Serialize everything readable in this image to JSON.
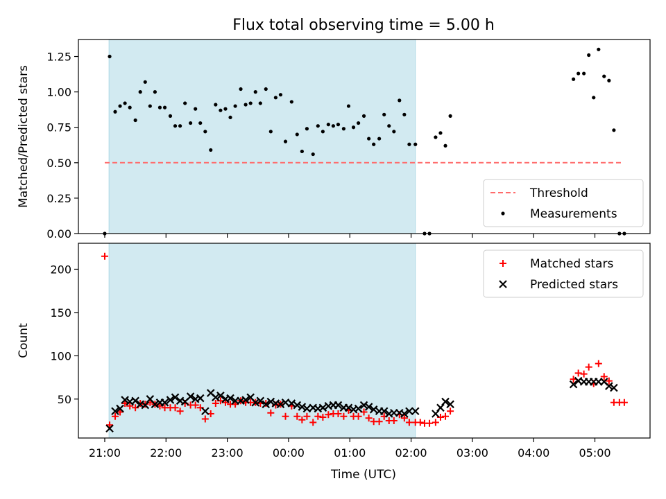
{
  "chart_data": {
    "type": "scatter",
    "title": "Flux total observing time = 5.00 h",
    "xlabel": "Time (UTC)",
    "x_ticks": [
      "21:00",
      "22:00",
      "23:00",
      "00:00",
      "01:00",
      "02:00",
      "03:00",
      "04:00",
      "05:00"
    ],
    "x_tick_hours": [
      0,
      1,
      2,
      3,
      4,
      5,
      6,
      7,
      8
    ],
    "x_range_hours": [
      -0.43,
      8.9
    ],
    "x_origin": "21:00",
    "shaded_interval_hours": [
      0.07,
      5.07
    ],
    "shade_color": "#add8e6",
    "panels": [
      {
        "ylabel": "Matched/Predicted stars",
        "ylim": [
          0,
          1.37
        ],
        "y_ticks": [
          "0.00",
          "0.25",
          "0.50",
          "0.75",
          "1.00",
          "1.25"
        ],
        "y_tick_values": [
          0,
          0.25,
          0.5,
          0.75,
          1.0,
          1.25
        ],
        "threshold": {
          "name": "Threshold",
          "value": 0.5,
          "x_span_hours": [
            0,
            8.45
          ],
          "color": "#ff6b6b"
        },
        "legend": [
          "Threshold",
          "Measurements"
        ],
        "legend_position": "lower right",
        "series": [
          {
            "name": "Measurements",
            "marker": "dot",
            "color": "#000000",
            "points": [
              [
                0.0,
                0.0
              ],
              [
                0.08,
                1.25
              ],
              [
                0.17,
                0.86
              ],
              [
                0.25,
                0.9
              ],
              [
                0.33,
                0.92
              ],
              [
                0.41,
                0.89
              ],
              [
                0.5,
                0.8
              ],
              [
                0.58,
                1.0
              ],
              [
                0.66,
                1.07
              ],
              [
                0.74,
                0.9
              ],
              [
                0.82,
                1.0
              ],
              [
                0.9,
                0.89
              ],
              [
                0.98,
                0.89
              ],
              [
                1.07,
                0.83
              ],
              [
                1.15,
                0.76
              ],
              [
                1.23,
                0.76
              ],
              [
                1.31,
                0.92
              ],
              [
                1.4,
                0.78
              ],
              [
                1.48,
                0.88
              ],
              [
                1.56,
                0.78
              ],
              [
                1.64,
                0.72
              ],
              [
                1.73,
                0.59
              ],
              [
                1.81,
                0.91
              ],
              [
                1.89,
                0.87
              ],
              [
                1.97,
                0.88
              ],
              [
                2.05,
                0.82
              ],
              [
                2.13,
                0.9
              ],
              [
                2.22,
                1.02
              ],
              [
                2.3,
                0.91
              ],
              [
                2.38,
                0.92
              ],
              [
                2.46,
                1.0
              ],
              [
                2.54,
                0.92
              ],
              [
                2.63,
                1.02
              ],
              [
                2.71,
                0.72
              ],
              [
                2.79,
                0.96
              ],
              [
                2.87,
                0.98
              ],
              [
                2.95,
                0.65
              ],
              [
                3.05,
                0.93
              ],
              [
                3.14,
                0.7
              ],
              [
                3.22,
                0.58
              ],
              [
                3.3,
                0.74
              ],
              [
                3.4,
                0.56
              ],
              [
                3.48,
                0.76
              ],
              [
                3.56,
                0.72
              ],
              [
                3.65,
                0.77
              ],
              [
                3.73,
                0.76
              ],
              [
                3.81,
                0.77
              ],
              [
                3.9,
                0.74
              ],
              [
                3.98,
                0.9
              ],
              [
                4.06,
                0.75
              ],
              [
                4.14,
                0.78
              ],
              [
                4.23,
                0.83
              ],
              [
                4.31,
                0.67
              ],
              [
                4.39,
                0.63
              ],
              [
                4.48,
                0.67
              ],
              [
                4.56,
                0.84
              ],
              [
                4.64,
                0.76
              ],
              [
                4.72,
                0.72
              ],
              [
                4.81,
                0.94
              ],
              [
                4.89,
                0.84
              ],
              [
                4.97,
                0.63
              ],
              [
                5.07,
                0.63
              ],
              [
                5.22,
                0.0
              ],
              [
                5.3,
                0.0
              ],
              [
                5.4,
                0.68
              ],
              [
                5.48,
                0.71
              ],
              [
                5.56,
                0.62
              ],
              [
                5.64,
                0.83
              ],
              [
                7.65,
                1.09
              ],
              [
                7.73,
                1.13
              ],
              [
                7.82,
                1.13
              ],
              [
                7.9,
                1.26
              ],
              [
                7.98,
                0.96
              ],
              [
                8.06,
                1.3
              ],
              [
                8.15,
                1.11
              ],
              [
                8.23,
                1.08
              ],
              [
                8.31,
                0.73
              ],
              [
                8.4,
                0.0
              ],
              [
                8.48,
                0.0
              ]
            ]
          }
        ]
      },
      {
        "ylabel": "Count",
        "ylim": [
          5,
          230
        ],
        "y_ticks": [
          "50",
          "100",
          "150",
          "200"
        ],
        "y_tick_values": [
          50,
          100,
          150,
          200
        ],
        "legend": [
          "Matched stars",
          "Predicted stars"
        ],
        "legend_position": "upper right",
        "series": [
          {
            "name": "Matched stars",
            "marker": "plus",
            "color": "#ff0000",
            "points": [
              [
                0.0,
                215
              ],
              [
                0.08,
                20
              ],
              [
                0.17,
                30
              ],
              [
                0.25,
                35
              ],
              [
                0.33,
                45
              ],
              [
                0.41,
                42
              ],
              [
                0.5,
                40
              ],
              [
                0.58,
                45
              ],
              [
                0.66,
                44
              ],
              [
                0.74,
                46
              ],
              [
                0.82,
                44
              ],
              [
                0.9,
                42
              ],
              [
                0.98,
                40
              ],
              [
                1.07,
                40
              ],
              [
                1.15,
                40
              ],
              [
                1.23,
                36
              ],
              [
                1.31,
                45
              ],
              [
                1.4,
                43
              ],
              [
                1.48,
                43
              ],
              [
                1.56,
                40
              ],
              [
                1.64,
                27
              ],
              [
                1.73,
                33
              ],
              [
                1.81,
                45
              ],
              [
                1.89,
                48
              ],
              [
                1.97,
                46
              ],
              [
                2.05,
                44
              ],
              [
                2.13,
                44
              ],
              [
                2.22,
                48
              ],
              [
                2.3,
                46
              ],
              [
                2.38,
                46
              ],
              [
                2.46,
                46
              ],
              [
                2.54,
                45
              ],
              [
                2.63,
                45
              ],
              [
                2.71,
                34
              ],
              [
                2.79,
                43
              ],
              [
                2.87,
                44
              ],
              [
                2.95,
                30
              ],
              [
                3.05,
                42
              ],
              [
                3.14,
                30
              ],
              [
                3.22,
                26
              ],
              [
                3.3,
                30
              ],
              [
                3.4,
                23
              ],
              [
                3.48,
                30
              ],
              [
                3.56,
                29
              ],
              [
                3.65,
                32
              ],
              [
                3.73,
                33
              ],
              [
                3.81,
                33
              ],
              [
                3.9,
                30
              ],
              [
                3.98,
                37
              ],
              [
                4.06,
                30
              ],
              [
                4.14,
                30
              ],
              [
                4.23,
                35
              ],
              [
                4.31,
                28
              ],
              [
                4.39,
                24
              ],
              [
                4.48,
                24
              ],
              [
                4.56,
                30
              ],
              [
                4.64,
                25
              ],
              [
                4.72,
                25
              ],
              [
                4.81,
                32
              ],
              [
                4.89,
                28
              ],
              [
                4.97,
                23
              ],
              [
                5.07,
                23
              ],
              [
                5.15,
                23
              ],
              [
                5.22,
                22
              ],
              [
                5.3,
                22
              ],
              [
                5.4,
                23
              ],
              [
                5.48,
                29
              ],
              [
                5.56,
                30
              ],
              [
                5.64,
                36
              ],
              [
                7.65,
                73
              ],
              [
                7.73,
                80
              ],
              [
                7.82,
                79
              ],
              [
                7.9,
                87
              ],
              [
                7.98,
                68
              ],
              [
                8.06,
                91
              ],
              [
                8.15,
                76
              ],
              [
                8.23,
                71
              ],
              [
                8.31,
                46
              ],
              [
                8.4,
                46
              ],
              [
                8.48,
                46
              ]
            ]
          },
          {
            "name": "Predicted stars",
            "marker": "x",
            "color": "#000000",
            "points": [
              [
                0.08,
                16
              ],
              [
                0.17,
                36
              ],
              [
                0.25,
                39
              ],
              [
                0.33,
                49
              ],
              [
                0.41,
                47
              ],
              [
                0.5,
                48
              ],
              [
                0.58,
                44
              ],
              [
                0.66,
                43
              ],
              [
                0.74,
                50
              ],
              [
                0.82,
                44
              ],
              [
                0.9,
                46
              ],
              [
                0.98,
                46
              ],
              [
                1.07,
                49
              ],
              [
                1.15,
                52
              ],
              [
                1.23,
                48
              ],
              [
                1.31,
                47
              ],
              [
                1.4,
                53
              ],
              [
                1.48,
                50
              ],
              [
                1.56,
                51
              ],
              [
                1.64,
                36
              ],
              [
                1.73,
                57
              ],
              [
                1.81,
                52
              ],
              [
                1.89,
                54
              ],
              [
                1.97,
                50
              ],
              [
                2.05,
                51
              ],
              [
                2.13,
                48
              ],
              [
                2.22,
                48
              ],
              [
                2.3,
                49
              ],
              [
                2.38,
                52
              ],
              [
                2.46,
                46
              ],
              [
                2.54,
                48
              ],
              [
                2.63,
                44
              ],
              [
                2.71,
                47
              ],
              [
                2.79,
                45
              ],
              [
                2.87,
                44
              ],
              [
                2.95,
                46
              ],
              [
                3.05,
                45
              ],
              [
                3.14,
                43
              ],
              [
                3.22,
                41
              ],
              [
                3.3,
                39
              ],
              [
                3.4,
                40
              ],
              [
                3.48,
                39
              ],
              [
                3.56,
                40
              ],
              [
                3.65,
                42
              ],
              [
                3.73,
                43
              ],
              [
                3.81,
                43
              ],
              [
                3.9,
                40
              ],
              [
                3.98,
                40
              ],
              [
                4.06,
                38
              ],
              [
                4.14,
                39
              ],
              [
                4.23,
                43
              ],
              [
                4.31,
                41
              ],
              [
                4.39,
                38
              ],
              [
                4.48,
                36
              ],
              [
                4.56,
                36
              ],
              [
                4.64,
                33
              ],
              [
                4.72,
                34
              ],
              [
                4.81,
                34
              ],
              [
                4.89,
                33
              ],
              [
                4.97,
                36
              ],
              [
                5.07,
                36
              ],
              [
                5.4,
                33
              ],
              [
                5.48,
                40
              ],
              [
                5.56,
                47
              ],
              [
                5.64,
                44
              ],
              [
                7.65,
                67
              ],
              [
                7.73,
                71
              ],
              [
                7.82,
                70
              ],
              [
                7.9,
                70
              ],
              [
                7.98,
                70
              ],
              [
                8.06,
                70
              ],
              [
                8.15,
                70
              ],
              [
                8.23,
                65
              ],
              [
                8.31,
                63
              ]
            ]
          }
        ]
      }
    ]
  }
}
